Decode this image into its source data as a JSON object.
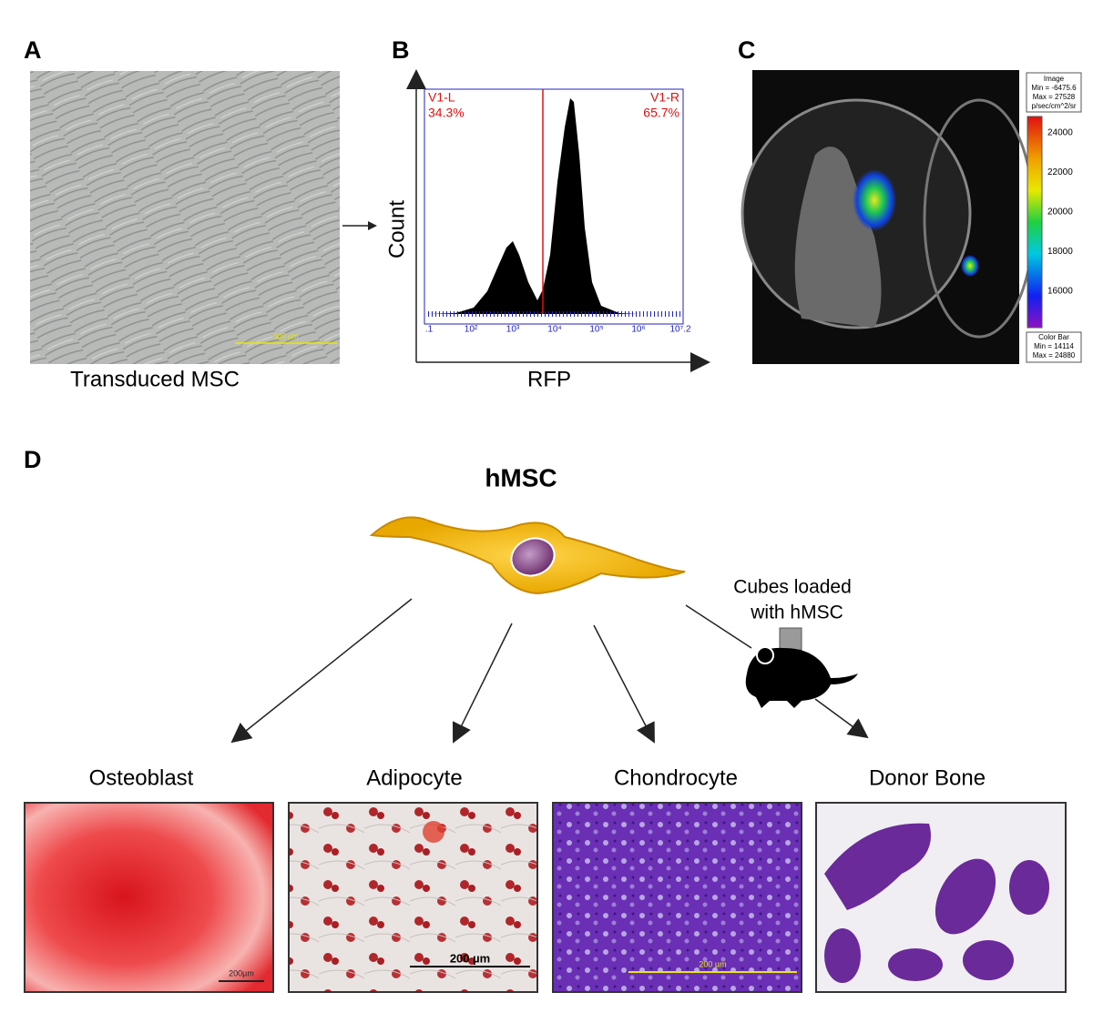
{
  "panels": {
    "a": {
      "label": "A",
      "caption": "Transduced MSC",
      "scale_bar": "500 µm"
    },
    "b": {
      "label": "B",
      "y_axis": "Count",
      "x_axis": "RFP",
      "gates": [
        {
          "name": "V1-L",
          "percent": "34.3%"
        },
        {
          "name": "V1-R",
          "percent": "65.7%"
        }
      ],
      "x_ticks": [
        ".1",
        "10²",
        "10³",
        "10⁴",
        "10⁵",
        "10⁶",
        "10⁷.2"
      ]
    },
    "c": {
      "label": "C",
      "image_box": [
        "Image",
        "Min = -6475.6",
        "Max = 27528",
        "p/sec/cm^2/sr"
      ],
      "colorbar_ticks": [
        "24000",
        "22000",
        "20000",
        "18000",
        "16000"
      ],
      "colorbar_box": [
        "Color Bar",
        "Min = 14114",
        "Max = 24880"
      ]
    },
    "d": {
      "label": "D",
      "title": "hMSC",
      "cube_note": [
        "Cubes loaded",
        "with hMSC"
      ],
      "outcomes": [
        {
          "name": "Osteoblast",
          "scale_bar": "200µm"
        },
        {
          "name": "Adipocyte",
          "scale_bar": "200 µm"
        },
        {
          "name": "Chondrocyte",
          "scale_bar": "200 µm"
        },
        {
          "name": "Donor Bone"
        }
      ]
    }
  }
}
